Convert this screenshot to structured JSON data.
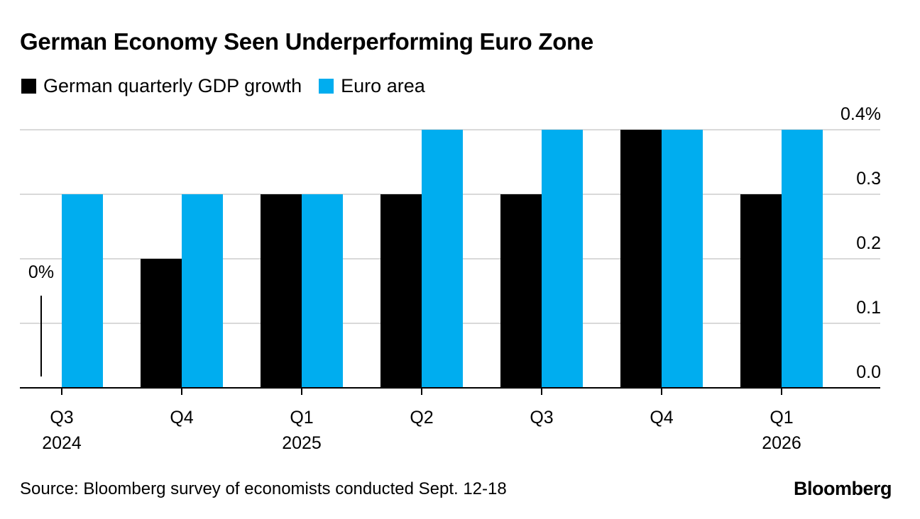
{
  "chart_data": {
    "type": "bar",
    "title": "German Economy Seen Underperforming Euro Zone",
    "categories": [
      "Q3",
      "Q4",
      "Q1",
      "Q2",
      "Q3",
      "Q4",
      "Q1"
    ],
    "year_labels": [
      "2024",
      "",
      "2025",
      "",
      "",
      "",
      "2026"
    ],
    "series": [
      {
        "name": "German quarterly GDP growth",
        "color": "#000000",
        "values": [
          0.0,
          0.2,
          0.3,
          0.3,
          0.3,
          0.4,
          0.3
        ]
      },
      {
        "name": "Euro area",
        "color": "#00adef",
        "values": [
          0.3,
          0.3,
          0.3,
          0.4,
          0.4,
          0.4,
          0.4
        ]
      }
    ],
    "ylim": [
      0,
      0.4
    ],
    "yticks": [
      0.0,
      0.1,
      0.2,
      0.3,
      0.4
    ],
    "ytick_labels": [
      "0.0",
      "0.1",
      "0.2",
      "0.3",
      "0.4%"
    ],
    "y_axis_side": "right",
    "grid": true,
    "annotations": [
      {
        "text": "0%",
        "category_index": 0,
        "series": "German quarterly GDP growth"
      }
    ],
    "xlabel": "",
    "ylabel": "",
    "source": "Source: Bloomberg survey of economists conducted Sept. 12-18",
    "brand": "Bloomberg"
  }
}
